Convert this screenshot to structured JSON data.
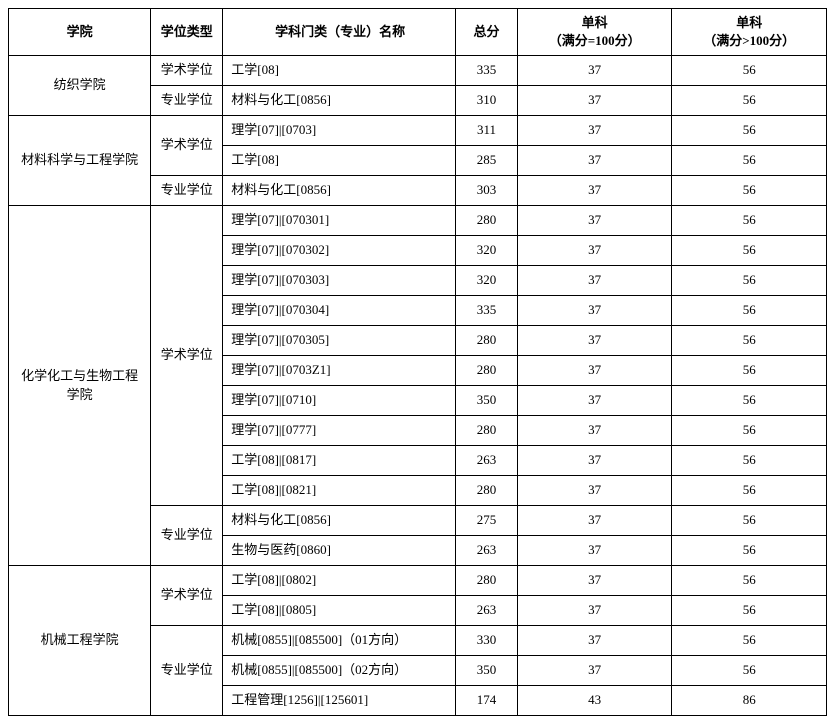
{
  "headers": {
    "college": "学院",
    "type": "学位类型",
    "major": "学科门类（专业）名称",
    "total": "总分",
    "sub1_line1": "单科",
    "sub1_line2": "（满分=100分）",
    "sub2_line1": "单科",
    "sub2_line2": "（满分>100分）"
  },
  "blocks": [
    {
      "college": "纺织学院",
      "college_rowspan": 2,
      "groups": [
        {
          "type": "学术学位",
          "type_rowspan": 1,
          "rows": [
            {
              "major": "工学[08]",
              "total": "335",
              "s1": "37",
              "s2": "56"
            }
          ]
        },
        {
          "type": "专业学位",
          "type_rowspan": 1,
          "rows": [
            {
              "major": "材料与化工[0856]",
              "total": "310",
              "s1": "37",
              "s2": "56"
            }
          ]
        }
      ]
    },
    {
      "college": "材料科学与工程学院",
      "college_rowspan": 3,
      "groups": [
        {
          "type": "学术学位",
          "type_rowspan": 2,
          "rows": [
            {
              "major": "理学[07]|[0703]",
              "total": "311",
              "s1": "37",
              "s2": "56"
            },
            {
              "major": "工学[08]",
              "total": "285",
              "s1": "37",
              "s2": "56"
            }
          ]
        },
        {
          "type": "专业学位",
          "type_rowspan": 1,
          "rows": [
            {
              "major": "材料与化工[0856]",
              "total": "303",
              "s1": "37",
              "s2": "56"
            }
          ]
        }
      ]
    },
    {
      "college": "化学化工与生物工程学院",
      "college_rowspan": 12,
      "groups": [
        {
          "type": "学术学位",
          "type_rowspan": 10,
          "rows": [
            {
              "major": "理学[07]|[070301]",
              "total": "280",
              "s1": "37",
              "s2": "56"
            },
            {
              "major": "理学[07]|[070302]",
              "total": "320",
              "s1": "37",
              "s2": "56"
            },
            {
              "major": "理学[07]|[070303]",
              "total": "320",
              "s1": "37",
              "s2": "56"
            },
            {
              "major": "理学[07]|[070304]",
              "total": "335",
              "s1": "37",
              "s2": "56"
            },
            {
              "major": "理学[07]|[070305]",
              "total": "280",
              "s1": "37",
              "s2": "56"
            },
            {
              "major": "理学[07]|[0703Z1]",
              "total": "280",
              "s1": "37",
              "s2": "56"
            },
            {
              "major": "理学[07]|[0710]",
              "total": "350",
              "s1": "37",
              "s2": "56"
            },
            {
              "major": "理学[07]|[0777]",
              "total": "280",
              "s1": "37",
              "s2": "56"
            },
            {
              "major": "工学[08]|[0817]",
              "total": "263",
              "s1": "37",
              "s2": "56"
            },
            {
              "major": "工学[08]|[0821]",
              "total": "280",
              "s1": "37",
              "s2": "56"
            }
          ]
        },
        {
          "type": "专业学位",
          "type_rowspan": 2,
          "rows": [
            {
              "major": "材料与化工[0856]",
              "total": "275",
              "s1": "37",
              "s2": "56"
            },
            {
              "major": "生物与医药[0860]",
              "total": "263",
              "s1": "37",
              "s2": "56"
            }
          ]
        }
      ]
    },
    {
      "college": "机械工程学院",
      "college_rowspan": 5,
      "groups": [
        {
          "type": "学术学位",
          "type_rowspan": 2,
          "rows": [
            {
              "major": "工学[08]|[0802]",
              "total": "280",
              "s1": "37",
              "s2": "56"
            },
            {
              "major": "工学[08]|[0805]",
              "total": "263",
              "s1": "37",
              "s2": "56"
            }
          ]
        },
        {
          "type": "专业学位",
          "type_rowspan": 3,
          "rows": [
            {
              "major": "机械[0855]|[085500]（01方向）",
              "total": "330",
              "s1": "37",
              "s2": "56"
            },
            {
              "major": "机械[0855]|[085500]（02方向）",
              "total": "350",
              "s1": "37",
              "s2": "56"
            },
            {
              "major": "工程管理[1256]|[125601]",
              "total": "174",
              "s1": "43",
              "s2": "86"
            }
          ]
        }
      ]
    }
  ]
}
